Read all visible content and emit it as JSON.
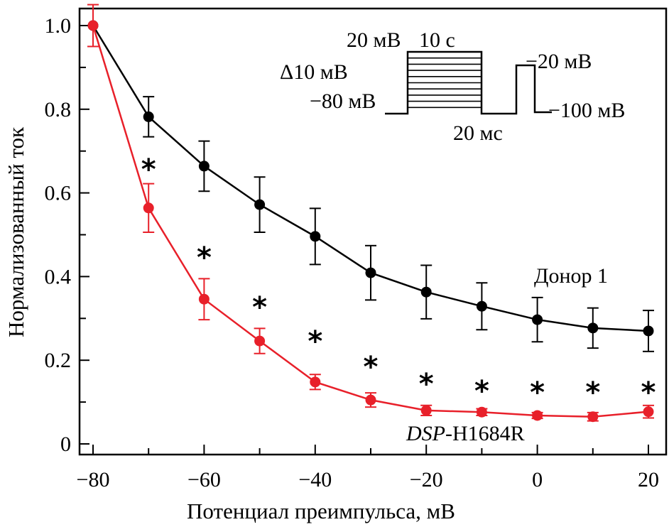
{
  "chart_data": {
    "type": "line",
    "title": "",
    "xlabel": "Потенциал преимпульса, мВ",
    "ylabel": "Нормализованный ток",
    "xlim": [
      -83,
      23
    ],
    "ylim": [
      -0.025,
      1.045
    ],
    "x_ticks": [
      -80,
      -60,
      -40,
      -20,
      0,
      20
    ],
    "x_tick_labels": [
      "−80",
      "−60",
      "−40",
      "−20",
      "0",
      "20"
    ],
    "x_minor_ticks": [
      -70,
      -50,
      -30,
      -10,
      10
    ],
    "y_ticks": [
      0,
      0.2,
      0.4,
      0.6,
      0.8,
      1.0
    ],
    "y_tick_labels": [
      "0",
      "0.2",
      "0.4",
      "0.6",
      "0.8",
      "1.0"
    ],
    "y_minor_ticks": [
      0.1,
      0.3,
      0.5,
      0.7,
      0.9
    ],
    "grid": false,
    "x": [
      -80,
      -70,
      -60,
      -50,
      -40,
      -30,
      -20,
      -10,
      0,
      10,
      20
    ],
    "series": [
      {
        "name": "Донор 1",
        "color": "#000000",
        "values": [
          1.0,
          0.782,
          0.664,
          0.572,
          0.496,
          0.409,
          0.363,
          0.329,
          0.297,
          0.277,
          0.27
        ],
        "errors": [
          0.0,
          0.048,
          0.06,
          0.066,
          0.067,
          0.065,
          0.064,
          0.056,
          0.053,
          0.048,
          0.049
        ]
      },
      {
        "name": "DSP-H1684R",
        "name_italic_part": "DSP",
        "name_rest": "-H1684R",
        "color": "#e8202a",
        "values": [
          1.0,
          0.564,
          0.346,
          0.246,
          0.148,
          0.105,
          0.08,
          0.076,
          0.068,
          0.065,
          0.077
        ],
        "errors": [
          0.05,
          0.058,
          0.049,
          0.03,
          0.018,
          0.017,
          0.012,
          0.008,
          0.007,
          0.01,
          0.015
        ]
      }
    ],
    "significance": {
      "symbol": "*",
      "x": [
        -70,
        -60,
        -50,
        -40,
        -30,
        -20,
        -10,
        0,
        10,
        20
      ]
    },
    "annotations": {
      "series1_label": "Донор 1",
      "series2_label_italic": "DSP",
      "series2_label_rest": "-H1684R"
    },
    "inset_protocol": {
      "labels": {
        "prepulse_max": "20 мВ",
        "prepulse_duration": "10 с",
        "step": "Δ10 мВ",
        "holding": "−80 мВ",
        "gap": "20 мс",
        "test": "−20 мВ",
        "after": "−100 мВ"
      },
      "prepulse_levels_count": 11
    }
  }
}
